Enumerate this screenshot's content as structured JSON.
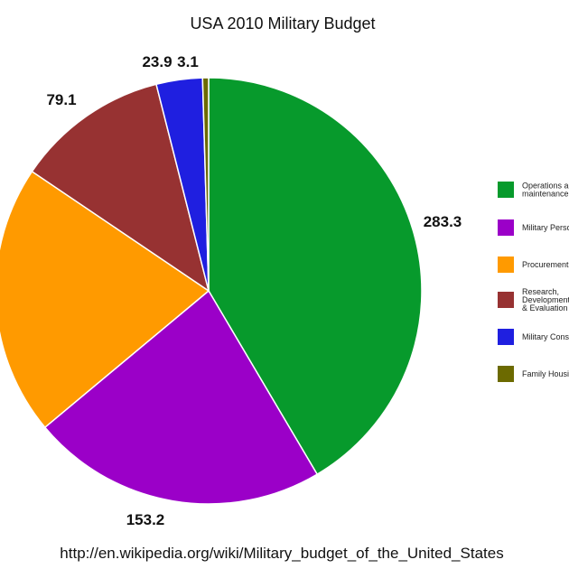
{
  "chart_data": {
    "type": "pie",
    "title": "USA 2010 Military Budget",
    "slices": [
      {
        "label": "Operations and\nmaintenance",
        "value": 283.3,
        "color": "#079a2c"
      },
      {
        "label": "Military Personnel",
        "value": 153.2,
        "color": "#9b00c8"
      },
      {
        "label": "Procurement",
        "value": 140.1,
        "color": "#ff9a00"
      },
      {
        "label": "Research,\nDevelopment, Test\n& Evaluation",
        "value": 79.1,
        "color": "#973232"
      },
      {
        "label": "Military Construction",
        "value": 23.9,
        "color": "#1f1fe0"
      },
      {
        "label": "Family Housing",
        "value": 3.1,
        "color": "#6c6a00"
      }
    ],
    "shown_value_labels": [
      "283.3",
      "153.2",
      "79.1",
      "23.9",
      "3.1"
    ],
    "legend_position": "right",
    "source": "http://en.wikipedia.org/wiki/Military_budget_of_the_United_States"
  }
}
